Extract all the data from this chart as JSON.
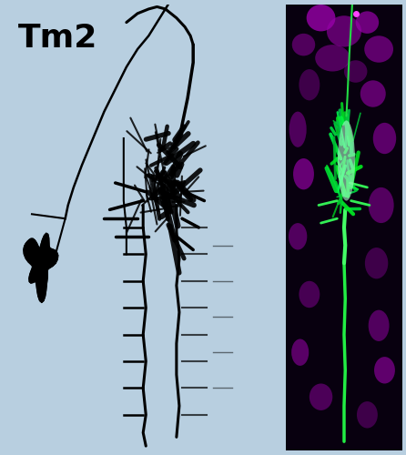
{
  "figure_bg_color": "#b8cfe0",
  "title_text": "Tm2",
  "title_fontsize": 26,
  "title_fontweight": "bold",
  "title_color": "#000000",
  "left_panel_bg": "#b8d4ea",
  "right_panel_bg": "#050008",
  "border_color": "#7799aa",
  "border_linewidth": 1.5,
  "fig_width": 4.46,
  "fig_height": 5.0,
  "dpi": 100
}
